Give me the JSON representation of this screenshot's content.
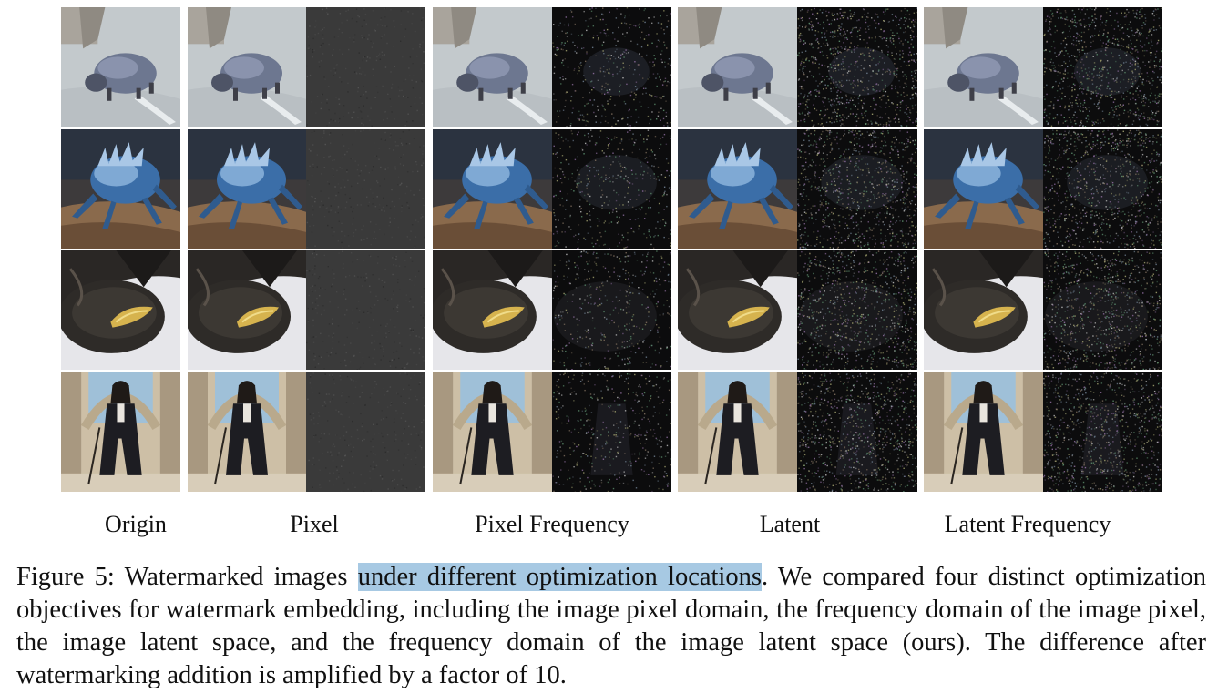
{
  "figure": {
    "rows": [
      {
        "subject": "small furry creature walking on sand"
      },
      {
        "subject": "blue spiky crab-like monster on rocky ground"
      },
      {
        "subject": "dark metal bowl with gold inlay on white cloth"
      },
      {
        "subject": "long-haired man in black coat in colonnade"
      }
    ],
    "columns": [
      "Origin",
      "Pixel",
      "Pixel Frequency",
      "Latent",
      "Latent Frequency"
    ]
  },
  "caption": {
    "label": "Figure 5:",
    "before_highlight": "Watermarked images ",
    "highlight": "under different optimization locations",
    "after_highlight": ". We compared four distinct optimization objectives for watermark embedding, including the image pixel domain, the frequency domain of the image pixel, the image latent space, and the frequency domain of the image latent space (ours). The difference after watermarking addition is amplified by a factor of 10."
  },
  "colors": {
    "highlight": "#a7c9e3",
    "diff_dark": "#0c0c0d",
    "diff_gray": "#3a3a3a"
  }
}
